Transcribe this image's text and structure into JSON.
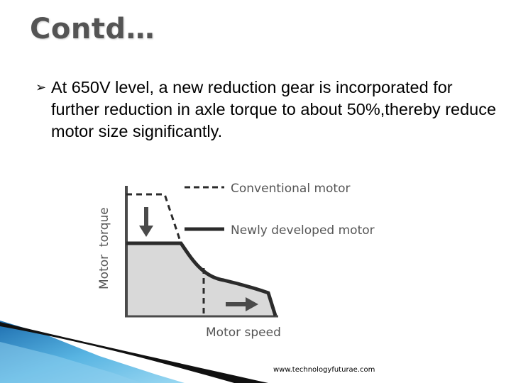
{
  "slide": {
    "title": "Contd…",
    "bullet_glyph": "➢",
    "bullet_text": "At 650V level, a new reduction gear is incorporated for further  reduction in axle torque to about 50%,thereby reduce motor size significantly.",
    "footer_url": "www.technologyfuturae.com"
  },
  "figure": {
    "legend_conventional": "Conventional motor",
    "legend_new": "Newly developed motor",
    "y_axis_label": "Motor  torque",
    "x_axis_label": "Motor speed",
    "fill_color": "#d9d9d9",
    "line_color": "#2b2b2b"
  },
  "colors": {
    "corner_blue": "#2a7fc0",
    "corner_light": "#8fd0ee"
  }
}
